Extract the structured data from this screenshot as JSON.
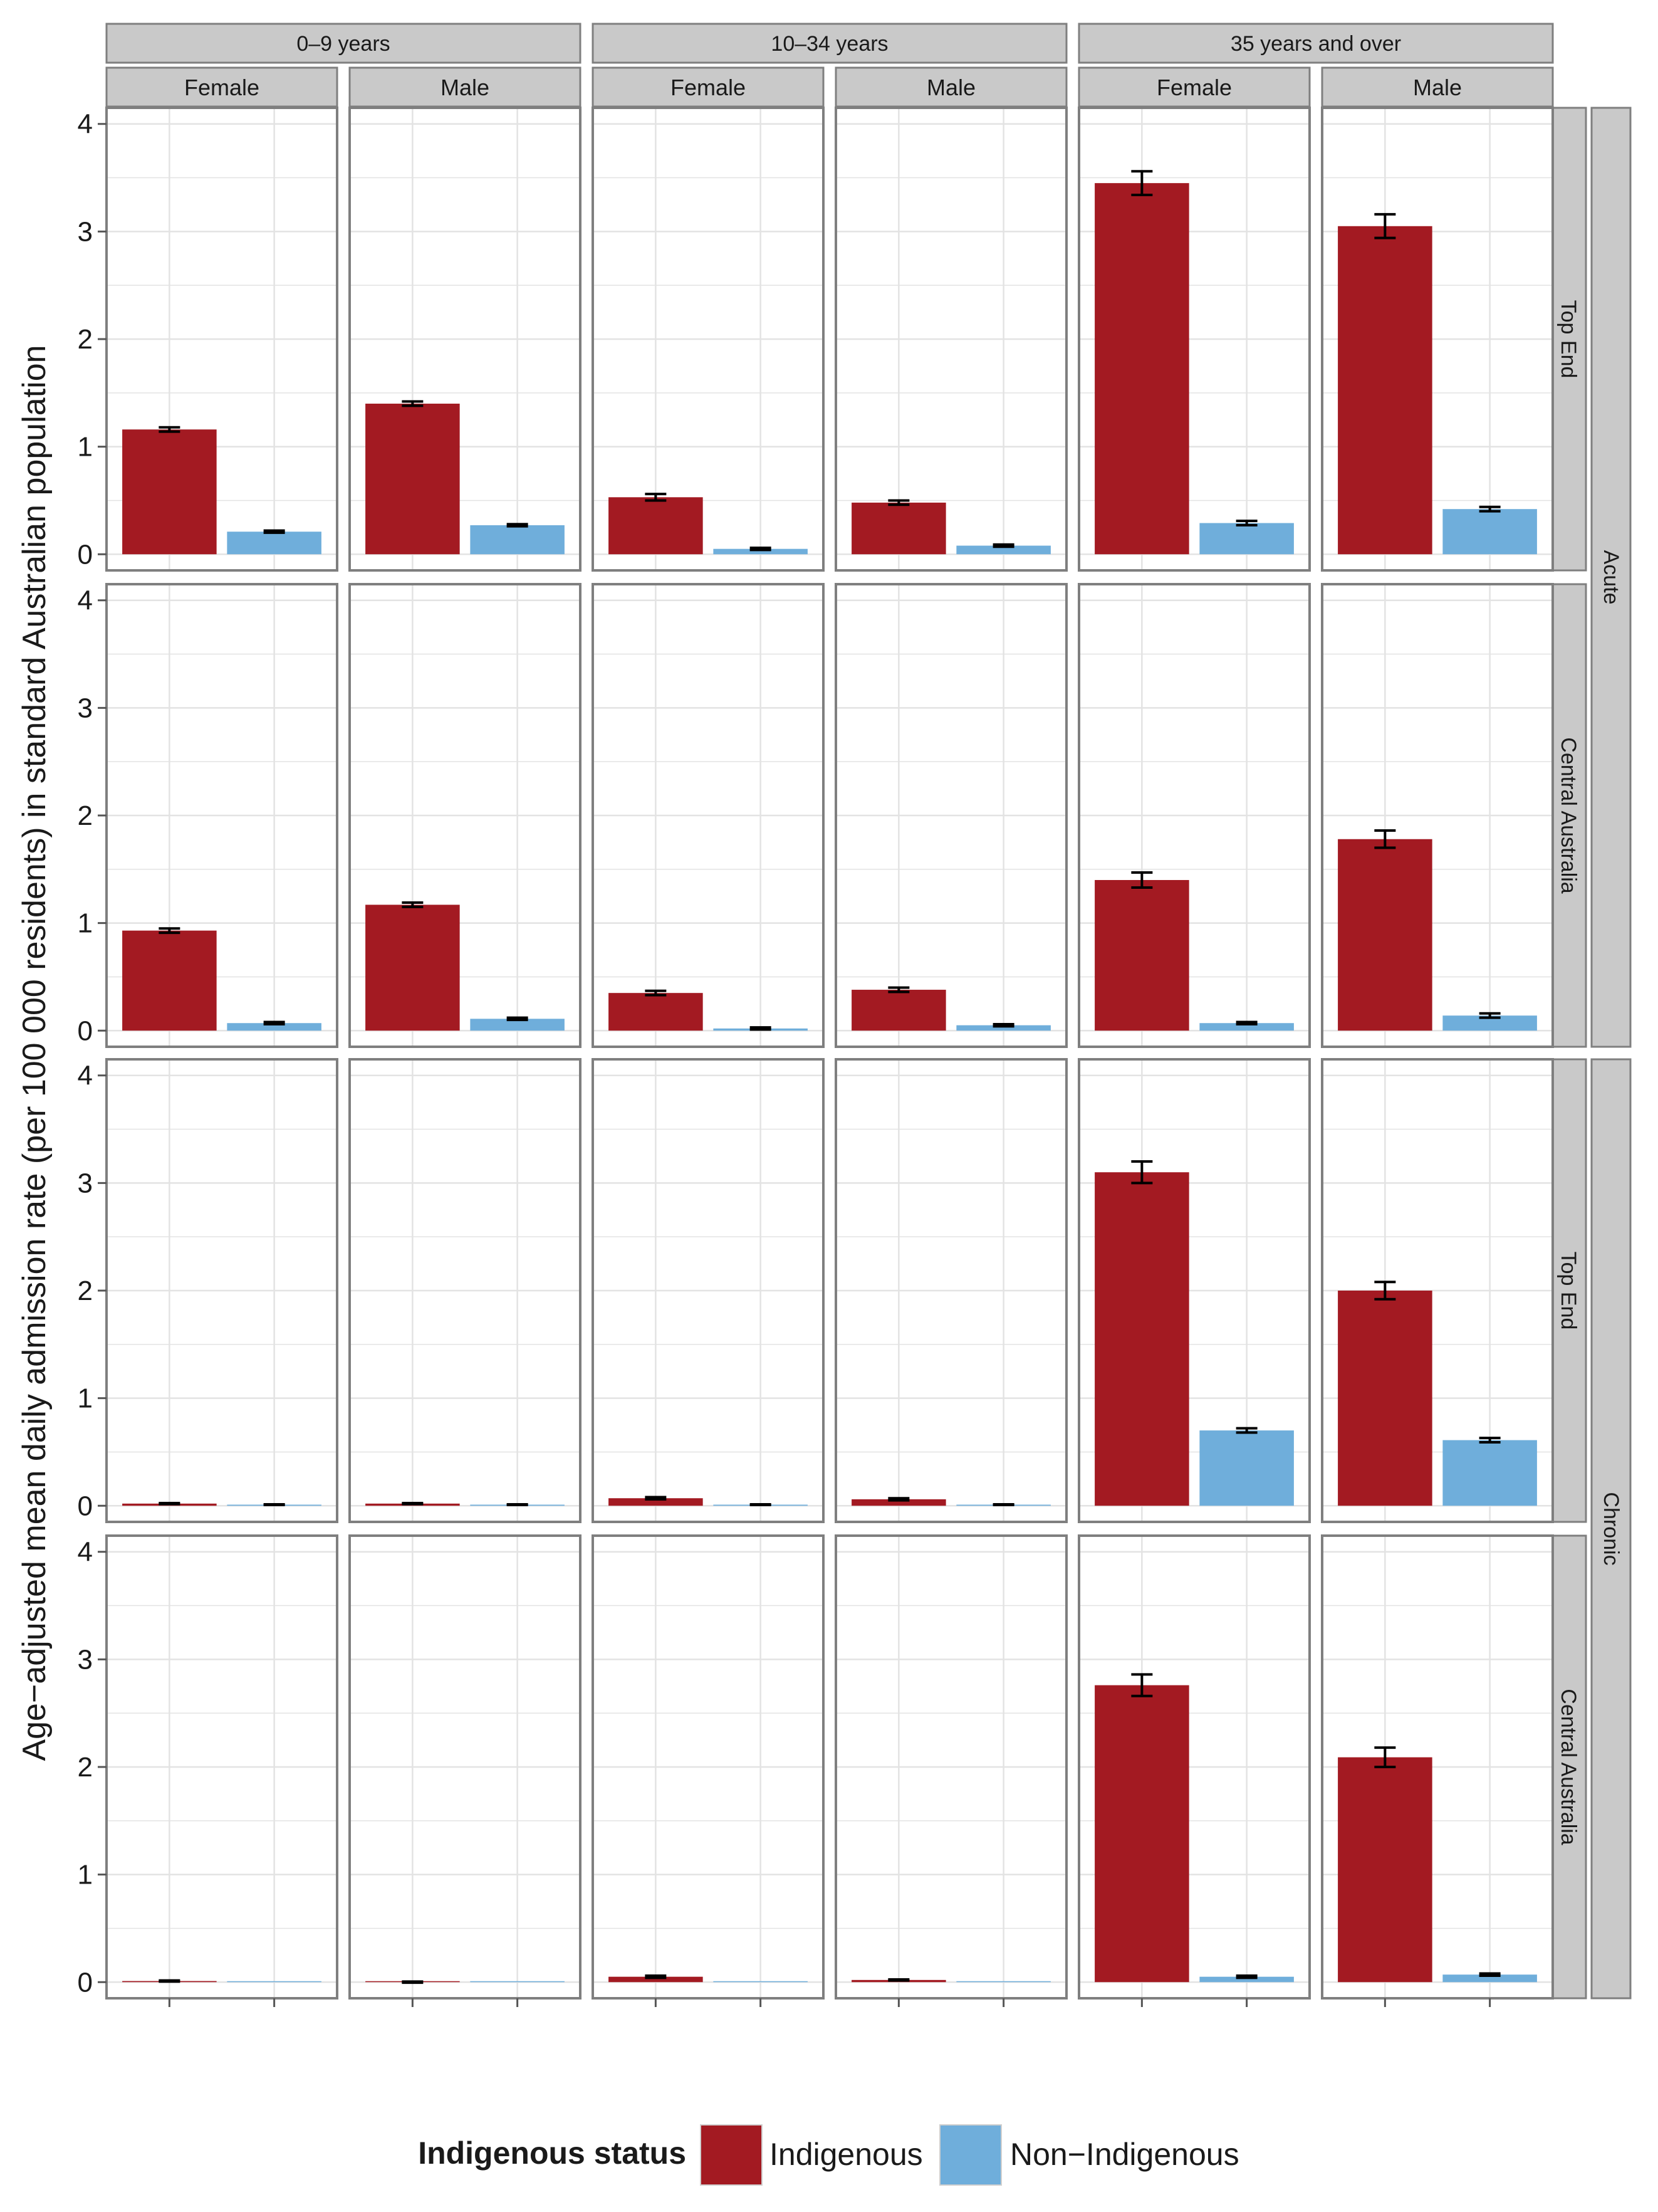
{
  "chart_data": {
    "type": "bar",
    "ylabel": "Age−adjusted mean daily admission rate (per 100 000 residents) in standard Australian population",
    "xlabel": "",
    "ylim": [
      -0.15,
      4.15
    ],
    "y_ticks": [
      0,
      1,
      2,
      3,
      4
    ],
    "y_tick_labels": [
      "0",
      "1",
      "2",
      "3",
      "4"
    ],
    "grid": true,
    "legend": {
      "title": "Indigenous status",
      "position": "bottom",
      "entries": [
        {
          "key": "indigenous",
          "label": "Indigenous",
          "color": "#A31A22"
        },
        {
          "key": "non_indigenous",
          "label": "Non−Indigenous",
          "color": "#6FAEDB"
        }
      ]
    },
    "age_groups": [
      {
        "label": "0–9 years",
        "sexes": [
          "Female",
          "Male"
        ]
      },
      {
        "label": "10–34 years",
        "sexes": [
          "Female",
          "Male"
        ]
      },
      {
        "label": "35 years and over",
        "sexes": [
          "Female",
          "Male"
        ]
      }
    ],
    "conditions": [
      {
        "label": "Acute",
        "regions": [
          "Top End",
          "Central Australia"
        ]
      },
      {
        "label": "Chronic",
        "regions": [
          "Top End",
          "Central Australia"
        ]
      }
    ],
    "series_keys": [
      "indigenous",
      "non_indigenous"
    ],
    "panels": [
      [
        [
          {
            "indigenous": {
              "value": 1.16,
              "err": 0.02
            },
            "non_indigenous": {
              "value": 0.21,
              "err": 0.01
            }
          },
          {
            "indigenous": {
              "value": 1.4,
              "err": 0.02
            },
            "non_indigenous": {
              "value": 0.27,
              "err": 0.01
            }
          },
          {
            "indigenous": {
              "value": 0.53,
              "err": 0.03
            },
            "non_indigenous": {
              "value": 0.05,
              "err": 0.01
            }
          },
          {
            "indigenous": {
              "value": 0.48,
              "err": 0.02
            },
            "non_indigenous": {
              "value": 0.08,
              "err": 0.01
            }
          },
          {
            "indigenous": {
              "value": 3.45,
              "err": 0.11
            },
            "non_indigenous": {
              "value": 0.29,
              "err": 0.02
            }
          },
          {
            "indigenous": {
              "value": 3.05,
              "err": 0.11
            },
            "non_indigenous": {
              "value": 0.42,
              "err": 0.02
            }
          }
        ],
        [
          {
            "indigenous": {
              "value": 0.93,
              "err": 0.02
            },
            "non_indigenous": {
              "value": 0.07,
              "err": 0.01
            }
          },
          {
            "indigenous": {
              "value": 1.17,
              "err": 0.02
            },
            "non_indigenous": {
              "value": 0.11,
              "err": 0.01
            }
          },
          {
            "indigenous": {
              "value": 0.35,
              "err": 0.02
            },
            "non_indigenous": {
              "value": 0.02,
              "err": 0.01
            }
          },
          {
            "indigenous": {
              "value": 0.38,
              "err": 0.02
            },
            "non_indigenous": {
              "value": 0.05,
              "err": 0.01
            }
          },
          {
            "indigenous": {
              "value": 1.4,
              "err": 0.07
            },
            "non_indigenous": {
              "value": 0.07,
              "err": 0.01
            }
          },
          {
            "indigenous": {
              "value": 1.78,
              "err": 0.08
            },
            "non_indigenous": {
              "value": 0.14,
              "err": 0.02
            }
          }
        ]
      ],
      [
        [
          {
            "indigenous": {
              "value": 0.02,
              "err": 0.005
            },
            "non_indigenous": {
              "value": 0.01,
              "err": 0.003
            }
          },
          {
            "indigenous": {
              "value": 0.02,
              "err": 0.005
            },
            "non_indigenous": {
              "value": 0.01,
              "err": 0.003
            }
          },
          {
            "indigenous": {
              "value": 0.07,
              "err": 0.01
            },
            "non_indigenous": {
              "value": 0.01,
              "err": 0.003
            }
          },
          {
            "indigenous": {
              "value": 0.06,
              "err": 0.01
            },
            "non_indigenous": {
              "value": 0.01,
              "err": 0.003
            }
          },
          {
            "indigenous": {
              "value": 3.1,
              "err": 0.1
            },
            "non_indigenous": {
              "value": 0.7,
              "err": 0.02
            }
          },
          {
            "indigenous": {
              "value": 2.0,
              "err": 0.08
            },
            "non_indigenous": {
              "value": 0.61,
              "err": 0.02
            }
          }
        ],
        [
          {
            "indigenous": {
              "value": 0.01,
              "err": 0.005
            },
            "non_indigenous": {
              "value": 0.0,
              "err": 0.0
            }
          },
          {
            "indigenous": {
              "value": 0.0,
              "err": 0.005
            },
            "non_indigenous": {
              "value": 0.0,
              "err": 0.0
            }
          },
          {
            "indigenous": {
              "value": 0.05,
              "err": 0.01
            },
            "non_indigenous": {
              "value": 0.0,
              "err": 0.0
            }
          },
          {
            "indigenous": {
              "value": 0.02,
              "err": 0.005
            },
            "non_indigenous": {
              "value": 0.0,
              "err": 0.0
            }
          },
          {
            "indigenous": {
              "value": 2.76,
              "err": 0.1
            },
            "non_indigenous": {
              "value": 0.05,
              "err": 0.01
            }
          },
          {
            "indigenous": {
              "value": 2.09,
              "err": 0.09
            },
            "non_indigenous": {
              "value": 0.07,
              "err": 0.01
            }
          }
        ]
      ]
    ]
  }
}
